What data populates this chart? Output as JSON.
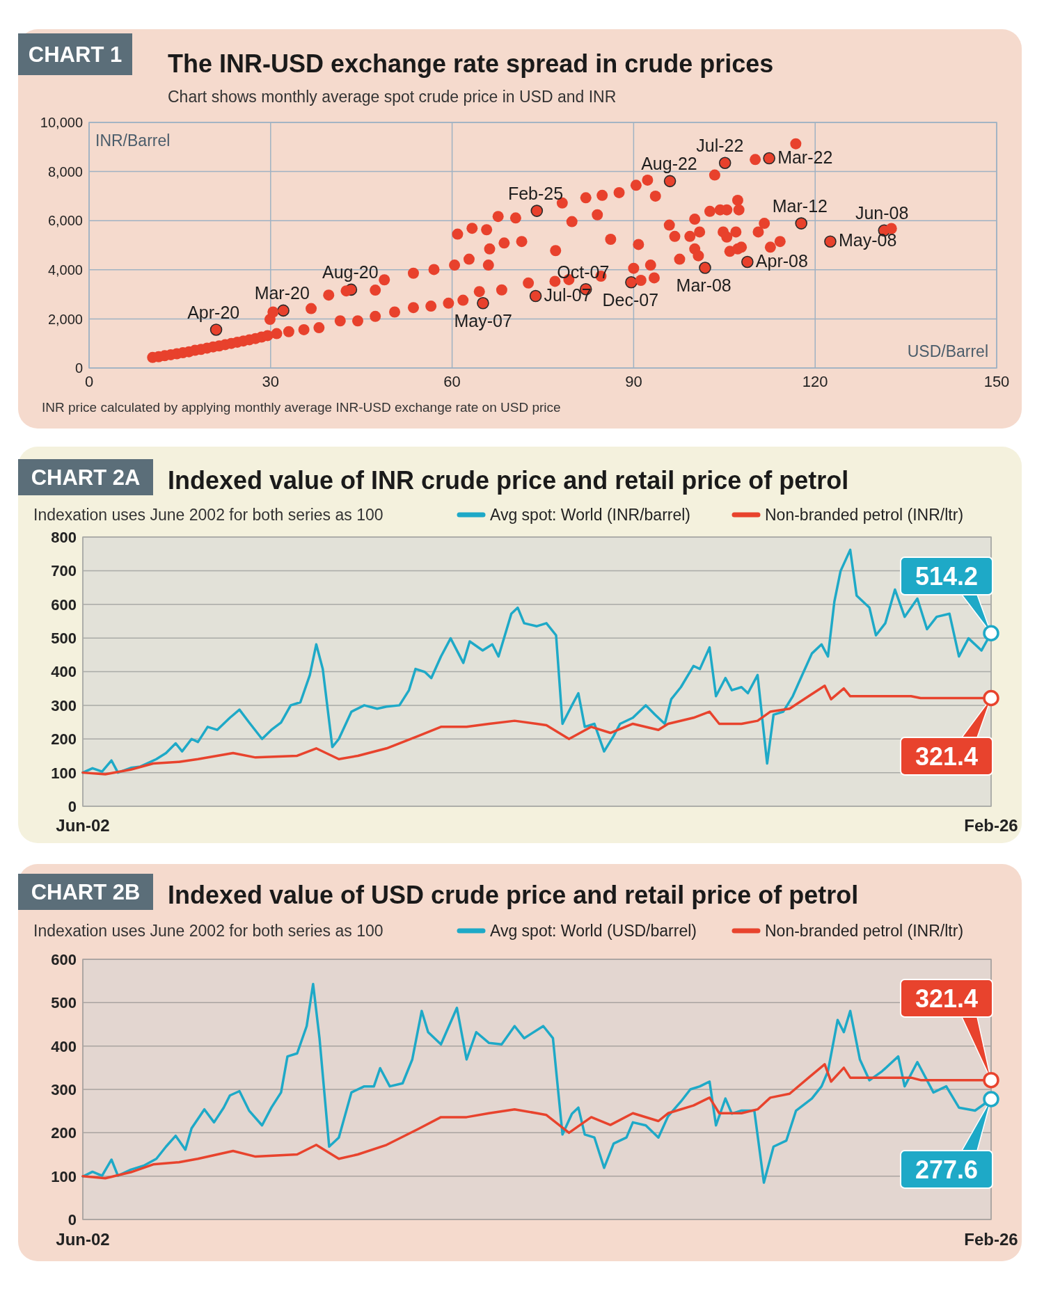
{
  "chart_data": [
    {
      "type": "scatter",
      "title": "The INR-USD exchange rate spread in crude prices",
      "subtitle": "Chart shows monthly average spot crude price in USD and INR",
      "xlabel": "USD/Barrel",
      "ylabel": "INR/Barrel",
      "color": "#e8412c",
      "marker": "circle",
      "grid": true,
      "xlim": [
        0,
        150
      ],
      "xticks": [
        0,
        30,
        60,
        90,
        120,
        150
      ],
      "ylim": [
        0,
        10000
      ],
      "yticks": [
        0,
        {
          "value": 2000,
          "label": "2,000"
        },
        {
          "value": 4000,
          "label": "4,000"
        },
        {
          "value": 6000,
          "label": "6,000"
        },
        {
          "value": 8000,
          "label": "8,000"
        },
        {
          "value": 10000,
          "label": "10,000"
        }
      ],
      "x": [
        10.5,
        11.5,
        12.5,
        13.5,
        14.5,
        15.5,
        16.5,
        17.5,
        18.5,
        19.5,
        20.5,
        21.5,
        22.5,
        23.5,
        24.5,
        25.5,
        26.5,
        27.5,
        28.5,
        29.5,
        31,
        33,
        21,
        32.1,
        43.3,
        65.1,
        74,
        73.8,
        96,
        105.1,
        112.4,
        117.7,
        131.4,
        122.5,
        108.8,
        101.8,
        89.6,
        82.1,
        35.5,
        38,
        41.5,
        44.4,
        47.3,
        50.5,
        53.6,
        56.5,
        59.4,
        61.8,
        64.5,
        68.2,
        72.6,
        77,
        79.3,
        84.6,
        29.9,
        30.4,
        36.7,
        39.6,
        42.5,
        47.3,
        48.8,
        53.6,
        57,
        60.4,
        60.9,
        63.3,
        65.7,
        67.6,
        70.5,
        66.2,
        68.6,
        71.5,
        62.8,
        66,
        78.2,
        82.1,
        84.8,
        87.6,
        90.4,
        92.3,
        93.6,
        103.4,
        110.1,
        116.8,
        79.8,
        84,
        77.1,
        86.2,
        90.8,
        90,
        92.8,
        93.4,
        91.2,
        95.9,
        96.8,
        97.6,
        99.3,
        100.1,
        100.9,
        102.6,
        104.3,
        105.4,
        104.8,
        106.9,
        105.4,
        107.2,
        107.4,
        100.1,
        100.7,
        105.9,
        107.2,
        107.8,
        110.6,
        111.6,
        112.6,
        114.2,
        132.6
      ],
      "values": [
        430,
        460,
        500,
        540,
        580,
        620,
        660,
        720,
        760,
        810,
        860,
        900,
        950,
        1000,
        1050,
        1100,
        1150,
        1200,
        1260,
        1320,
        1400,
        1480,
        1560,
        2340,
        3190,
        2640,
        6400,
        2930,
        7610,
        8350,
        8540,
        5890,
        5600,
        5150,
        4320,
        4080,
        3490,
        3210,
        1560,
        1640,
        1920,
        1920,
        2100,
        2280,
        2460,
        2520,
        2640,
        2760,
        3110,
        3180,
        3460,
        3530,
        3600,
        3740,
        1980,
        2280,
        2420,
        2970,
        3140,
        3170,
        3590,
        3860,
        4010,
        4190,
        5450,
        5690,
        5630,
        6170,
        6110,
        4850,
        5090,
        5150,
        4430,
        4190,
        6720,
        6930,
        7030,
        7140,
        7440,
        7650,
        7000,
        7860,
        8490,
        9130,
        5960,
        6240,
        4780,
        5240,
        5030,
        4060,
        4190,
        3670,
        3570,
        5820,
        5360,
        4430,
        5360,
        6060,
        5540,
        6380,
        6440,
        6440,
        5540,
        5540,
        5330,
        6830,
        6440,
        4850,
        4570,
        4750,
        4850,
        4920,
        5540,
        5890,
        4920,
        5150,
        5680
      ],
      "annotations": [
        "CHART 1",
        "INR price calculated by applying monthly average INR-USD exchange rate on USD price",
        {
          "text": "Apr-20",
          "x": 21,
          "y": 1560
        },
        {
          "text": "Mar-20",
          "x": 32.1,
          "y": 2340
        },
        {
          "text": "Aug-20",
          "x": 43.3,
          "y": 3190
        },
        {
          "text": "May-07",
          "x": 65.1,
          "y": 2640
        },
        {
          "text": "Feb-25",
          "x": 74,
          "y": 6400
        },
        {
          "text": "Jul-07",
          "x": 73.8,
          "y": 2930
        },
        {
          "text": "Oct-07",
          "x": 82.1,
          "y": 3210
        },
        {
          "text": "Dec-07",
          "x": 89.6,
          "y": 3490
        },
        {
          "text": "Aug-22",
          "x": 96,
          "y": 7610
        },
        {
          "text": "Mar-08",
          "x": 101.8,
          "y": 4080
        },
        {
          "text": "Jul-22",
          "x": 105.1,
          "y": 8350
        },
        {
          "text": "Apr-08",
          "x": 108.8,
          "y": 4320
        },
        {
          "text": "Mar-22",
          "x": 112.4,
          "y": 8540
        },
        {
          "text": "Mar-12",
          "x": 117.7,
          "y": 5890
        },
        {
          "text": "May-08",
          "x": 122.5,
          "y": 5150
        },
        {
          "text": "Jun-08",
          "x": 131.4,
          "y": 5600
        }
      ]
    },
    {
      "type": "line",
      "title": "Indexed value of INR crude price and retail price of petrol",
      "subtitle": "Indexation uses June 2002 for both series as 100",
      "legend": "top",
      "grid": true,
      "xlim": [
        "2002-06",
        "2026-02"
      ],
      "xticks": [
        {
          "value": "2002-06",
          "label": "Jun-02"
        },
        {
          "value": "2026-02",
          "label": "Feb-26"
        }
      ],
      "ylim": [
        0,
        800
      ],
      "yticks": [
        0,
        100,
        200,
        300,
        400,
        500,
        600,
        700,
        800
      ],
      "series": [
        {
          "name": "Avg spot: World (INR/barrel)",
          "color": "#1ea9c7",
          "x": [
            "2002-06",
            "2002-09",
            "2002-12",
            "2003-03",
            "2003-05",
            "2003-09",
            "2003-12",
            "2004-05",
            "2004-08",
            "2004-11",
            "2005-01",
            "2005-04",
            "2005-06",
            "2005-09",
            "2005-12",
            "2006-04",
            "2006-07",
            "2006-10",
            "2007-02",
            "2007-05",
            "2007-08",
            "2007-11",
            "2008-02",
            "2008-05",
            "2008-07",
            "2008-09",
            "2008-12",
            "2009-02",
            "2009-06",
            "2009-10",
            "2010-02",
            "2010-05",
            "2010-09",
            "2010-12",
            "2011-02",
            "2011-05",
            "2011-07",
            "2011-10",
            "2012-01",
            "2012-05",
            "2012-07",
            "2012-11",
            "2013-02",
            "2013-04",
            "2013-08",
            "2013-10",
            "2013-12",
            "2014-04",
            "2014-07",
            "2014-10",
            "2014-12",
            "2015-03",
            "2015-05",
            "2015-07",
            "2015-10",
            "2016-01",
            "2016-04",
            "2016-06",
            "2016-10",
            "2017-02",
            "2017-05",
            "2017-08",
            "2017-10",
            "2018-01",
            "2018-05",
            "2018-07",
            "2018-10",
            "2018-12",
            "2019-03",
            "2019-05",
            "2019-08",
            "2019-10",
            "2020-01",
            "2020-04",
            "2020-06",
            "2020-09",
            "2020-12",
            "2021-03",
            "2021-06",
            "2021-09",
            "2021-11",
            "2022-01",
            "2022-03",
            "2022-06",
            "2022-08",
            "2022-12",
            "2023-02",
            "2023-05",
            "2023-08",
            "2023-11",
            "2024-03",
            "2024-06",
            "2024-09",
            "2025-01",
            "2025-04",
            "2025-07",
            "2025-11",
            "2026-02"
          ],
          "values": [
            100,
            113,
            103,
            136,
            100,
            114,
            118,
            140,
            158,
            187,
            163,
            200,
            191,
            236,
            227,
            263,
            287,
            249,
            200,
            227,
            249,
            300,
            309,
            390,
            481,
            408,
            176,
            200,
            281,
            300,
            290,
            296,
            300,
            345,
            408,
            399,
            381,
            445,
            499,
            426,
            490,
            463,
            481,
            445,
            572,
            590,
            544,
            535,
            544,
            508,
            245,
            300,
            336,
            236,
            245,
            163,
            209,
            245,
            263,
            300,
            272,
            245,
            318,
            354,
            417,
            408,
            472,
            327,
            381,
            345,
            354,
            336,
            390,
            127,
            272,
            281,
            327,
            390,
            454,
            481,
            445,
            608,
            699,
            762,
            626,
            590,
            508,
            544,
            644,
            563,
            617,
            526,
            563,
            572,
            445,
            499,
            463,
            514.2
          ]
        },
        {
          "name": "Non-branded petrol (INR/ltr)",
          "color": "#e8432d",
          "x": [
            "2002-06",
            "2003-01",
            "2003-09",
            "2004-04",
            "2004-12",
            "2005-06",
            "2006-05",
            "2006-12",
            "2008-01",
            "2008-07",
            "2009-02",
            "2009-08",
            "2010-05",
            "2011-03",
            "2011-10",
            "2012-06",
            "2013-01",
            "2013-09",
            "2014-04",
            "2014-07",
            "2015-02",
            "2015-09",
            "2016-03",
            "2016-10",
            "2017-06",
            "2017-09",
            "2018-05",
            "2018-10",
            "2019-01",
            "2019-08",
            "2020-01",
            "2020-05",
            "2020-11",
            "2021-05",
            "2021-10",
            "2021-12",
            "2022-04",
            "2022-06",
            "2024-01",
            "2024-04",
            "2026-02"
          ],
          "values": [
            100,
            95,
            109,
            127,
            132,
            140,
            158,
            145,
            150,
            172,
            140,
            150,
            172,
            209,
            236,
            236,
            245,
            254,
            245,
            241,
            200,
            236,
            218,
            245,
            227,
            245,
            263,
            281,
            245,
            245,
            254,
            281,
            290,
            327,
            358,
            318,
            350,
            327,
            327,
            321.4,
            321.4
          ]
        }
      ],
      "annotations": [
        "CHART 2A",
        {
          "text": "514.2",
          "x": "2026-02",
          "y": 514.2
        },
        {
          "text": "321.4",
          "x": "2026-02",
          "y": 321.4
        }
      ]
    },
    {
      "type": "line",
      "title": "Indexed value of USD crude price and retail price of petrol",
      "subtitle": "Indexation uses June 2002 for both series as 100",
      "legend": "top",
      "grid": true,
      "xlim": [
        "2002-06",
        "2026-02"
      ],
      "xticks": [
        {
          "value": "2002-06",
          "label": "Jun-02"
        },
        {
          "value": "2026-02",
          "label": "Feb-26"
        }
      ],
      "ylim": [
        0,
        600
      ],
      "yticks": [
        0,
        100,
        200,
        300,
        400,
        500,
        600
      ],
      "series": [
        {
          "name": "Avg spot: World (USD/barrel)",
          "color": "#1ea9c7",
          "x": [
            "2002-06",
            "2002-09",
            "2002-12",
            "2003-03",
            "2003-05",
            "2003-09",
            "2004-01",
            "2004-05",
            "2004-08",
            "2004-11",
            "2005-02",
            "2005-04",
            "2005-08",
            "2005-11",
            "2006-02",
            "2006-04",
            "2006-07",
            "2006-10",
            "2007-02",
            "2007-05",
            "2007-08",
            "2007-10",
            "2008-01",
            "2008-04",
            "2008-06",
            "2008-08",
            "2008-11",
            "2009-02",
            "2009-06",
            "2009-10",
            "2010-01",
            "2010-03",
            "2010-06",
            "2010-10",
            "2011-01",
            "2011-04",
            "2011-06",
            "2011-10",
            "2012-03",
            "2012-06",
            "2012-09",
            "2013-01",
            "2013-05",
            "2013-09",
            "2013-12",
            "2014-06",
            "2014-09",
            "2014-12",
            "2015-03",
            "2015-05",
            "2015-07",
            "2015-10",
            "2016-01",
            "2016-04",
            "2016-08",
            "2016-10",
            "2017-02",
            "2017-06",
            "2017-09",
            "2018-01",
            "2018-04",
            "2018-07",
            "2018-10",
            "2018-12",
            "2019-03",
            "2019-05",
            "2019-08",
            "2019-12",
            "2020-03",
            "2020-06",
            "2020-10",
            "2021-01",
            "2021-06",
            "2021-09",
            "2021-11",
            "2022-02",
            "2022-04",
            "2022-06",
            "2022-09",
            "2022-12",
            "2023-04",
            "2023-09",
            "2023-11",
            "2024-03",
            "2024-08",
            "2024-12",
            "2025-04",
            "2025-09",
            "2026-02"
          ],
          "values": [
            99,
            110,
            101,
            138,
            101,
            115,
            124,
            140,
            168,
            193,
            161,
            210,
            254,
            224,
            258,
            286,
            296,
            251,
            217,
            258,
            293,
            376,
            383,
            446,
            543,
            418,
            168,
            189,
            293,
            307,
            307,
            349,
            307,
            314,
            369,
            481,
            432,
            404,
            488,
            369,
            432,
            407,
            404,
            446,
            418,
            446,
            418,
            196,
            244,
            258,
            196,
            189,
            119,
            175,
            189,
            224,
            217,
            189,
            238,
            272,
            300,
            307,
            318,
            217,
            279,
            244,
            251,
            251,
            85,
            168,
            182,
            251,
            279,
            307,
            342,
            460,
            432,
            481,
            369,
            321,
            342,
            376,
            307,
            363,
            293,
            307,
            258,
            251,
            277.6
          ]
        },
        {
          "name": "Non-branded petrol (INR/ltr)",
          "color": "#e8432d",
          "x": [
            "2002-06",
            "2003-01",
            "2003-09",
            "2004-04",
            "2004-12",
            "2005-06",
            "2006-05",
            "2006-12",
            "2008-01",
            "2008-07",
            "2009-02",
            "2009-08",
            "2010-05",
            "2011-03",
            "2011-10",
            "2012-06",
            "2013-01",
            "2013-09",
            "2014-04",
            "2014-07",
            "2015-02",
            "2015-09",
            "2016-03",
            "2016-10",
            "2017-06",
            "2017-09",
            "2018-05",
            "2018-10",
            "2019-01",
            "2019-08",
            "2020-01",
            "2020-05",
            "2020-11",
            "2021-05",
            "2021-10",
            "2021-12",
            "2022-04",
            "2022-06",
            "2024-01",
            "2024-04",
            "2026-02"
          ],
          "values": [
            100,
            95,
            109,
            127,
            132,
            140,
            158,
            145,
            150,
            172,
            140,
            150,
            172,
            209,
            236,
            236,
            245,
            254,
            245,
            241,
            200,
            236,
            218,
            245,
            227,
            245,
            263,
            281,
            245,
            245,
            254,
            281,
            290,
            327,
            358,
            318,
            350,
            327,
            327,
            321.4,
            321.4
          ]
        }
      ],
      "annotations": [
        "CHART 2B",
        {
          "text": "321.4",
          "x": "2026-02",
          "y": 321.4
        },
        {
          "text": "277.6",
          "x": "2026-02",
          "y": 277.6
        }
      ]
    }
  ]
}
